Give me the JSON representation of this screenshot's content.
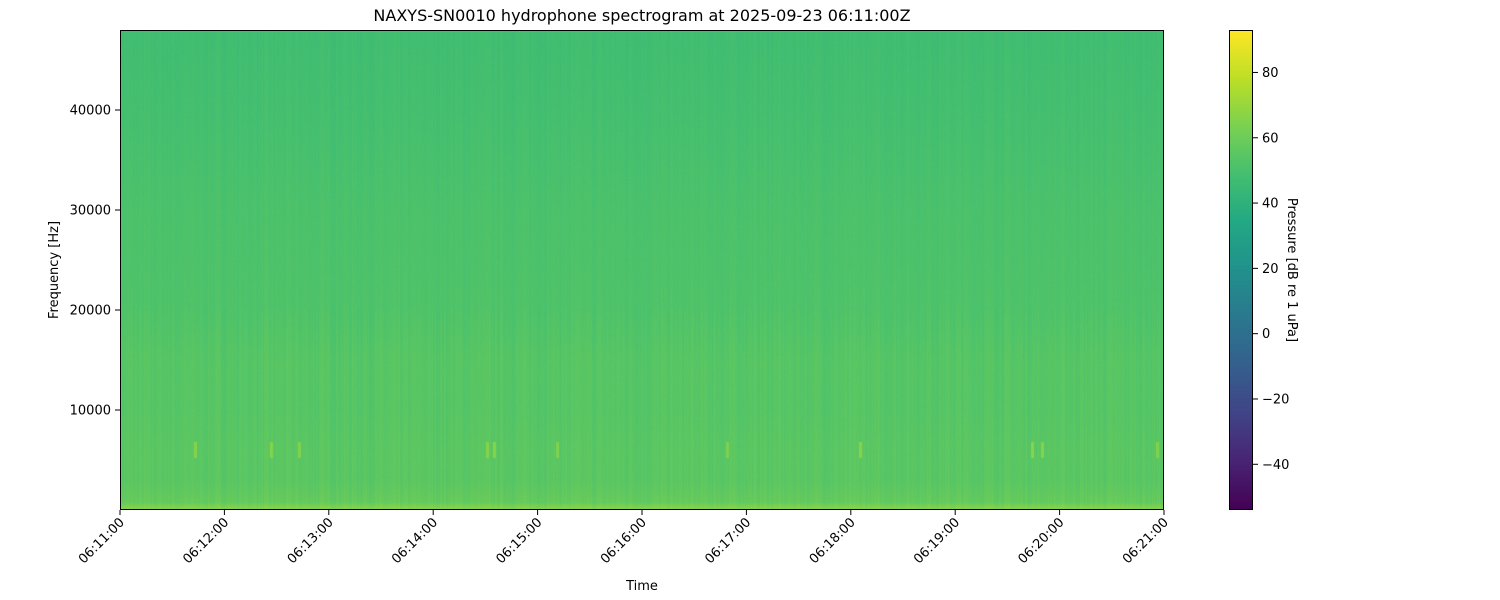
{
  "chart_data": {
    "type": "heatmap",
    "title": "NAXYS-SN0010 hydrophone spectrogram at 2025-09-23 06:11:00Z",
    "xlabel": "Time",
    "ylabel": "Frequency [Hz]",
    "colorbar_label": "Pressure [dB re 1 uPa]",
    "colormap": "viridis",
    "x_ticks": [
      "06:11:00",
      "06:12:00",
      "06:13:00",
      "06:14:00",
      "06:15:00",
      "06:16:00",
      "06:17:00",
      "06:18:00",
      "06:19:00",
      "06:20:00",
      "06:21:00"
    ],
    "xlim": [
      "06:11:00",
      "06:21:00"
    ],
    "y_ticks": [
      10000,
      20000,
      30000,
      40000
    ],
    "ylim": [
      0,
      48000
    ],
    "colorbar_ticks": [
      -40,
      -20,
      0,
      20,
      40,
      60,
      80
    ],
    "clim": [
      -54,
      93
    ],
    "frequency_profile": {
      "frequency_hz": [
        250,
        750,
        3000,
        6000,
        10000,
        15000,
        20000,
        30000,
        40000,
        47000
      ],
      "level_db": [
        65,
        58,
        55,
        55,
        54,
        54,
        52,
        51,
        49,
        48
      ]
    },
    "transient_events_6khz": {
      "times": [
        "06:11:43",
        "06:12:27",
        "06:12:43",
        "06:14:31",
        "06:14:35",
        "06:15:11",
        "06:16:49",
        "06:18:05",
        "06:19:44",
        "06:19:50",
        "06:20:56"
      ],
      "level_db": [
        66,
        66,
        65,
        66,
        66,
        65,
        64,
        66,
        67,
        66,
        65
      ]
    },
    "grid": false
  }
}
